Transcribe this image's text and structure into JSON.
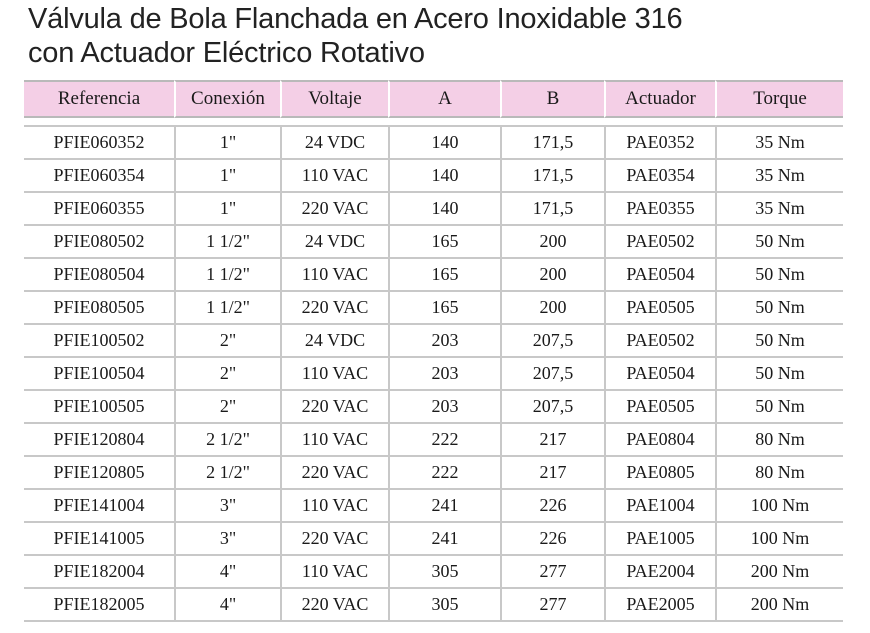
{
  "title": {
    "line1": "Válvula de Bola Flanchada en Acero Inoxidable 316",
    "line2": "con Actuador Eléctrico Rotativo"
  },
  "colors": {
    "header_bg": "#f4cfe6",
    "rule": "#c8c8c8"
  },
  "table": {
    "headers": [
      "Referencia",
      "Conexión",
      "Voltaje",
      "A",
      "B",
      "Actuador",
      "Torque"
    ],
    "rows": [
      [
        "PFIE060352",
        "1\"",
        "24 VDC",
        "140",
        "171,5",
        "PAE0352",
        "35 Nm"
      ],
      [
        "PFIE060354",
        "1\"",
        "110 VAC",
        "140",
        "171,5",
        "PAE0354",
        "35 Nm"
      ],
      [
        "PFIE060355",
        "1\"",
        "220 VAC",
        "140",
        "171,5",
        "PAE0355",
        "35 Nm"
      ],
      [
        "PFIE080502",
        "1 1/2\"",
        "24 VDC",
        "165",
        "200",
        "PAE0502",
        "50 Nm"
      ],
      [
        "PFIE080504",
        "1 1/2\"",
        "110 VAC",
        "165",
        "200",
        "PAE0504",
        "50 Nm"
      ],
      [
        "PFIE080505",
        "1 1/2\"",
        "220 VAC",
        "165",
        "200",
        "PAE0505",
        "50 Nm"
      ],
      [
        "PFIE100502",
        "2\"",
        "24 VDC",
        "203",
        "207,5",
        "PAE0502",
        "50 Nm"
      ],
      [
        "PFIE100504",
        "2\"",
        "110 VAC",
        "203",
        "207,5",
        "PAE0504",
        "50 Nm"
      ],
      [
        "PFIE100505",
        "2\"",
        "220 VAC",
        "203",
        "207,5",
        "PAE0505",
        "50 Nm"
      ],
      [
        "PFIE120804",
        "2 1/2\"",
        "110 VAC",
        "222",
        "217",
        "PAE0804",
        "80 Nm"
      ],
      [
        "PFIE120805",
        "2 1/2\"",
        "220 VAC",
        "222",
        "217",
        "PAE0805",
        "80 Nm"
      ],
      [
        "PFIE141004",
        "3\"",
        "110 VAC",
        "241",
        "226",
        "PAE1004",
        "100 Nm"
      ],
      [
        "PFIE141005",
        "3\"",
        "220 VAC",
        "241",
        "226",
        "PAE1005",
        "100 Nm"
      ],
      [
        "PFIE182004",
        "4\"",
        "110 VAC",
        "305",
        "277",
        "PAE2004",
        "200 Nm"
      ],
      [
        "PFIE182005",
        "4\"",
        "220 VAC",
        "305",
        "277",
        "PAE2005",
        "200 Nm"
      ]
    ]
  }
}
